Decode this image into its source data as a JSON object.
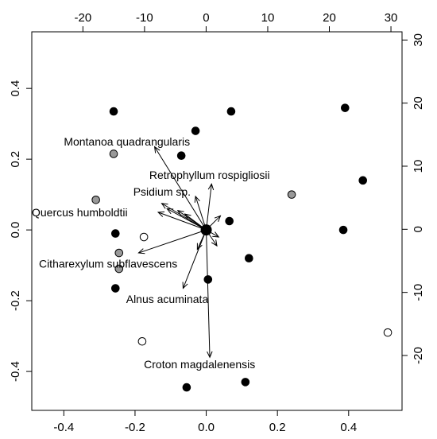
{
  "chart_data": {
    "type": "scatter",
    "subtype": "biplot",
    "title": "",
    "xlabel": "",
    "ylabel": "",
    "xlim": [
      -0.49,
      0.55
    ],
    "ylim": [
      -0.51,
      0.56
    ],
    "top_axis_lim": [
      -28.3,
      31.8
    ],
    "right_axis_lim": [
      -28.7,
      31.3
    ],
    "bottom_ticks": [
      "-0.4",
      "-0.2",
      "0.0",
      "0.2",
      "0.4"
    ],
    "bottom_tick_values": [
      -0.4,
      -0.2,
      0.0,
      0.2,
      0.4
    ],
    "left_ticks": [
      "-0.4",
      "-0.2",
      "0.0",
      "0.2",
      "0.4"
    ],
    "left_tick_values": [
      -0.4,
      -0.2,
      0.0,
      0.2,
      0.4
    ],
    "top_ticks": [
      "-20",
      "-10",
      "0",
      "10",
      "20",
      "30"
    ],
    "top_tick_values": [
      -20,
      -10,
      0,
      10,
      20,
      30
    ],
    "right_ticks": [
      "-20",
      "-10",
      "0",
      "10",
      "20",
      "30"
    ],
    "right_tick_values": [
      -20,
      -10,
      0,
      10,
      20,
      30
    ],
    "grid": false,
    "colors": {
      "black_point": "#000000",
      "gray_point": "#999999",
      "white_point": "#ffffff",
      "outline": "#000000",
      "arrow": "#000000"
    },
    "points": [
      {
        "x": -0.26,
        "y": 0.335,
        "fill": "black"
      },
      {
        "x": -0.03,
        "y": 0.28,
        "fill": "black"
      },
      {
        "x": 0.07,
        "y": 0.335,
        "fill": "black"
      },
      {
        "x": 0.39,
        "y": 0.345,
        "fill": "black"
      },
      {
        "x": -0.07,
        "y": 0.21,
        "fill": "black"
      },
      {
        "x": 0.44,
        "y": 0.14,
        "fill": "black"
      },
      {
        "x": 0.065,
        "y": 0.025,
        "fill": "black"
      },
      {
        "x": -0.255,
        "y": -0.01,
        "fill": "black"
      },
      {
        "x": 0.385,
        "y": 0.0,
        "fill": "black"
      },
      {
        "x": 0.12,
        "y": -0.08,
        "fill": "black"
      },
      {
        "x": 0.005,
        "y": -0.14,
        "fill": "black"
      },
      {
        "x": -0.255,
        "y": -0.165,
        "fill": "black"
      },
      {
        "x": 0.11,
        "y": -0.43,
        "fill": "black"
      },
      {
        "x": -0.055,
        "y": -0.445,
        "fill": "black"
      },
      {
        "x": -0.26,
        "y": 0.215,
        "fill": "gray"
      },
      {
        "x": -0.31,
        "y": 0.085,
        "fill": "gray"
      },
      {
        "x": 0.24,
        "y": 0.1,
        "fill": "gray"
      },
      {
        "x": -0.245,
        "y": -0.065,
        "fill": "gray"
      },
      {
        "x": -0.245,
        "y": -0.11,
        "fill": "gray"
      },
      {
        "x": -0.175,
        "y": -0.02,
        "fill": "white"
      },
      {
        "x": -0.18,
        "y": -0.315,
        "fill": "white"
      },
      {
        "x": 0.51,
        "y": -0.29,
        "fill": "white"
      }
    ],
    "arrows": [
      {
        "x": -0.145,
        "y": 0.235
      },
      {
        "x": 0.015,
        "y": 0.13
      },
      {
        "x": -0.03,
        "y": 0.095
      },
      {
        "x": -0.125,
        "y": 0.075
      },
      {
        "x": -0.11,
        "y": 0.06
      },
      {
        "x": -0.08,
        "y": 0.055
      },
      {
        "x": -0.135,
        "y": 0.05
      },
      {
        "x": -0.06,
        "y": 0.045
      },
      {
        "x": 0.04,
        "y": 0.04
      },
      {
        "x": -0.19,
        "y": -0.065
      },
      {
        "x": -0.065,
        "y": -0.165
      },
      {
        "x": 0.01,
        "y": -0.36
      },
      {
        "x": 0.03,
        "y": -0.045
      },
      {
        "x": -0.025,
        "y": -0.055
      },
      {
        "x": 0.035,
        "y": -0.02
      }
    ],
    "annotations": [
      {
        "text": "Montanoa quadrangularis",
        "x": -0.4,
        "y": 0.25,
        "anchor": "start"
      },
      {
        "text": "Retrophyllum  rospigliosii",
        "x": -0.16,
        "y": 0.155,
        "anchor": "start"
      },
      {
        "text": "Psidium sp.",
        "x": -0.205,
        "y": 0.108,
        "anchor": "start"
      },
      {
        "text": "Quercus  humboldtii",
        "x": -0.49,
        "y": 0.05,
        "anchor": "start"
      },
      {
        "text": "Citharexylum subflavescens",
        "x": -0.47,
        "y": -0.095,
        "anchor": "start"
      },
      {
        "text": "Alnus acuminata",
        "x": -0.225,
        "y": -0.195,
        "anchor": "start"
      },
      {
        "text": "Croton  magdalenensis",
        "x": -0.175,
        "y": -0.38,
        "anchor": "start"
      }
    ]
  }
}
